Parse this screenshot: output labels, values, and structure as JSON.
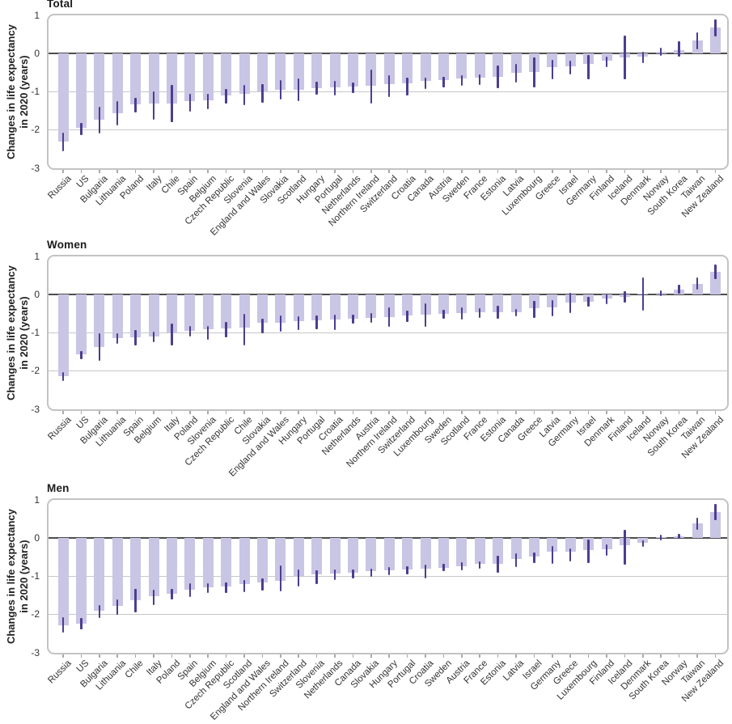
{
  "page": {
    "background": "#ffffff"
  },
  "colors": {
    "bar_fill": "#c9c5e4",
    "error_bar": "#4b3e8f",
    "zero_line": "#4d4d4d",
    "gridline": "#c7c7c7",
    "frame_border": "#c3c3c3",
    "title_text": "#1a1a1a",
    "tick_text": "#333333"
  },
  "axis": {
    "ylabel_line1": "Changes in life expectancy",
    "ylabel_line2": "in 2020 (years)",
    "yticks": [
      1,
      0,
      -1,
      -2,
      -3
    ],
    "gridlines": [
      -1,
      -2
    ],
    "ymax": 1,
    "ymin": -3
  },
  "chart_data": [
    {
      "type": "bar",
      "title": "Total",
      "ylabel": "Changes in life expectancy in 2020 (years)",
      "ylim": [
        -3,
        1
      ],
      "yticks": [
        1,
        0,
        -1,
        -2,
        -3
      ],
      "grid": "horizontal",
      "legend": "none",
      "error_bars": "95% CI",
      "categories": [
        "Russia",
        "US",
        "Bulgaria",
        "Lithuania",
        "Poland",
        "Italy",
        "Chile",
        "Spain",
        "Belgium",
        "Czech Republic",
        "Slovenia",
        "England and Wales",
        "Slovakia",
        "Scotland",
        "Hungary",
        "Portugal",
        "Netherlands",
        "Northern Ireland",
        "Switzerland",
        "Croatia",
        "Canada",
        "Austria",
        "Sweden",
        "France",
        "Estonia",
        "Latvia",
        "Luxembourg",
        "Greece",
        "Israel",
        "Germany",
        "Finland",
        "Iceland",
        "Denmark",
        "Norway",
        "South Korea",
        "Taiwan",
        "New Zealand"
      ],
      "values": [
        -2.3,
        -1.95,
        -1.72,
        -1.57,
        -1.32,
        -1.31,
        -1.3,
        -1.25,
        -1.22,
        -1.1,
        -1.05,
        -1.02,
        -0.95,
        -0.94,
        -0.9,
        -0.88,
        -0.86,
        -0.85,
        -0.79,
        -0.78,
        -0.72,
        -0.69,
        -0.66,
        -0.64,
        -0.61,
        -0.5,
        -0.48,
        -0.36,
        -0.33,
        -0.28,
        -0.19,
        -0.1,
        -0.08,
        0.05,
        0.1,
        0.34,
        0.69
      ],
      "ci_low": [
        -2.56,
        -2.14,
        -2.08,
        -1.88,
        -1.53,
        -1.72,
        -1.8,
        -1.52,
        -1.45,
        -1.31,
        -1.34,
        -1.29,
        -1.21,
        -1.24,
        -1.08,
        -1.1,
        -1.03,
        -1.31,
        -1.14,
        -1.1,
        -0.93,
        -0.88,
        -0.85,
        -0.83,
        -0.9,
        -0.75,
        -0.88,
        -0.68,
        -0.55,
        -0.68,
        -0.36,
        -0.68,
        -0.24,
        -0.06,
        -0.07,
        0.12,
        0.45
      ],
      "ci_high": [
        -2.06,
        -1.82,
        -1.4,
        -1.25,
        -1.15,
        -0.99,
        -0.82,
        -1.05,
        -1.05,
        -0.92,
        -0.82,
        -0.79,
        -0.7,
        -0.66,
        -0.73,
        -0.72,
        -0.75,
        -0.41,
        -0.57,
        -0.62,
        -0.64,
        -0.61,
        -0.57,
        -0.55,
        -0.31,
        -0.28,
        -0.1,
        -0.17,
        -0.19,
        -0.03,
        -0.07,
        0.48,
        0.05,
        0.15,
        0.32,
        0.55,
        0.9
      ]
    },
    {
      "type": "bar",
      "title": "Women",
      "ylabel": "Changes in life expectancy in 2020 (years)",
      "ylim": [
        -3,
        1
      ],
      "yticks": [
        1,
        0,
        -1,
        -2,
        -3
      ],
      "grid": "horizontal",
      "legend": "none",
      "error_bars": "95% CI",
      "categories": [
        "Russia",
        "US",
        "Bulgaria",
        "Lithuania",
        "Spain",
        "Belgium",
        "Italy",
        "Poland",
        "Slovenia",
        "Czech Republic",
        "Chile",
        "Slovakia",
        "England and Wales",
        "Hungary",
        "Portugal",
        "Croatia",
        "Netherlands",
        "Austria",
        "Northern Ireland",
        "Switzerland",
        "Luxembourg",
        "Sweden",
        "Scotland",
        "France",
        "Estonia",
        "Canada",
        "Greece",
        "Latvia",
        "Germany",
        "Israel",
        "Denmark",
        "Finland",
        "Iceland",
        "Norway",
        "South Korea",
        "Taiwan",
        "New Zealand"
      ],
      "values": [
        -2.14,
        -1.56,
        -1.37,
        -1.14,
        -1.11,
        -1.1,
        -1.0,
        -0.94,
        -0.91,
        -0.88,
        -0.87,
        -0.74,
        -0.73,
        -0.7,
        -0.68,
        -0.66,
        -0.62,
        -0.6,
        -0.58,
        -0.55,
        -0.53,
        -0.51,
        -0.49,
        -0.47,
        -0.46,
        -0.45,
        -0.36,
        -0.33,
        -0.21,
        -0.18,
        -0.11,
        -0.06,
        0.02,
        0.05,
        0.14,
        0.29,
        0.6
      ],
      "ci_low": [
        -2.26,
        -1.68,
        -1.74,
        -1.28,
        -1.32,
        -1.25,
        -1.33,
        -1.1,
        -1.18,
        -1.11,
        -1.33,
        -1.02,
        -0.97,
        -0.93,
        -0.9,
        -0.93,
        -0.76,
        -0.73,
        -0.84,
        -0.72,
        -0.85,
        -0.64,
        -0.66,
        -0.6,
        -0.62,
        -0.56,
        -0.61,
        -0.57,
        -0.48,
        -0.32,
        -0.24,
        -0.2,
        -0.41,
        -0.03,
        0.02,
        0.13,
        0.41
      ],
      "ci_high": [
        -2.02,
        -1.47,
        -1.02,
        -1.0,
        -0.92,
        -0.96,
        -0.76,
        -0.81,
        -0.82,
        -0.71,
        -0.5,
        -0.64,
        -0.55,
        -0.57,
        -0.55,
        -0.52,
        -0.52,
        -0.48,
        -0.34,
        -0.41,
        -0.22,
        -0.4,
        -0.33,
        -0.36,
        -0.3,
        -0.37,
        -0.17,
        -0.14,
        0.04,
        -0.06,
        0.01,
        0.08,
        0.44,
        0.12,
        0.26,
        0.45,
        0.79
      ]
    },
    {
      "type": "bar",
      "title": "Men",
      "ylabel": "Changes in life expectancy in 2020 (years)",
      "ylim": [
        -3,
        1
      ],
      "yticks": [
        1,
        0,
        -1,
        -2,
        -3
      ],
      "grid": "horizontal",
      "legend": "none",
      "error_bars": "95% CI",
      "categories": [
        "Russia",
        "US",
        "Bulgaria",
        "Lithuania",
        "Chile",
        "Italy",
        "Poland",
        "Spain",
        "Belgium",
        "Czech Republic",
        "Scotland",
        "England and Wales",
        "Northern Ireland",
        "Switzerland",
        "Slovenia",
        "Netherlands",
        "Canada",
        "Slovakia",
        "Hungary",
        "Portugal",
        "Croatia",
        "Sweden",
        "Austria",
        "France",
        "Estonia",
        "Latvia",
        "Israel",
        "Germany",
        "Greece",
        "Luxembourg",
        "Finland",
        "Iceland",
        "Denmark",
        "South Korea",
        "Norway",
        "Taiwan",
        "New Zealand"
      ],
      "values": [
        -2.27,
        -2.23,
        -1.91,
        -1.77,
        -1.62,
        -1.52,
        -1.45,
        -1.35,
        -1.28,
        -1.27,
        -1.2,
        -1.16,
        -1.11,
        -0.99,
        -0.94,
        -0.93,
        -0.91,
        -0.87,
        -0.84,
        -0.82,
        -0.8,
        -0.77,
        -0.73,
        -0.68,
        -0.67,
        -0.54,
        -0.48,
        -0.36,
        -0.35,
        -0.31,
        -0.29,
        -0.19,
        -0.12,
        0.02,
        0.04,
        0.38,
        0.69
      ],
      "ci_low": [
        -2.47,
        -2.38,
        -2.09,
        -2.0,
        -1.95,
        -1.76,
        -1.6,
        -1.55,
        -1.43,
        -1.43,
        -1.41,
        -1.36,
        -1.39,
        -1.27,
        -1.21,
        -1.09,
        -1.06,
        -1.01,
        -0.96,
        -0.94,
        -1.06,
        -0.87,
        -0.84,
        -0.79,
        -0.9,
        -0.76,
        -0.66,
        -0.67,
        -0.61,
        -0.66,
        -0.45,
        -0.7,
        -0.22,
        -0.06,
        -0.02,
        0.22,
        0.48
      ],
      "ci_high": [
        -2.06,
        -2.09,
        -1.76,
        -1.6,
        -1.33,
        -1.35,
        -1.33,
        -1.19,
        -1.17,
        -1.15,
        -1.09,
        -1.06,
        -0.71,
        -0.82,
        -0.84,
        -0.83,
        -0.82,
        -0.79,
        -0.75,
        -0.73,
        -0.7,
        -0.68,
        -0.64,
        -0.61,
        -0.45,
        -0.4,
        -0.38,
        -0.2,
        -0.26,
        -0.03,
        -0.17,
        0.22,
        -0.06,
        0.1,
        0.12,
        0.54,
        0.9
      ]
    }
  ]
}
